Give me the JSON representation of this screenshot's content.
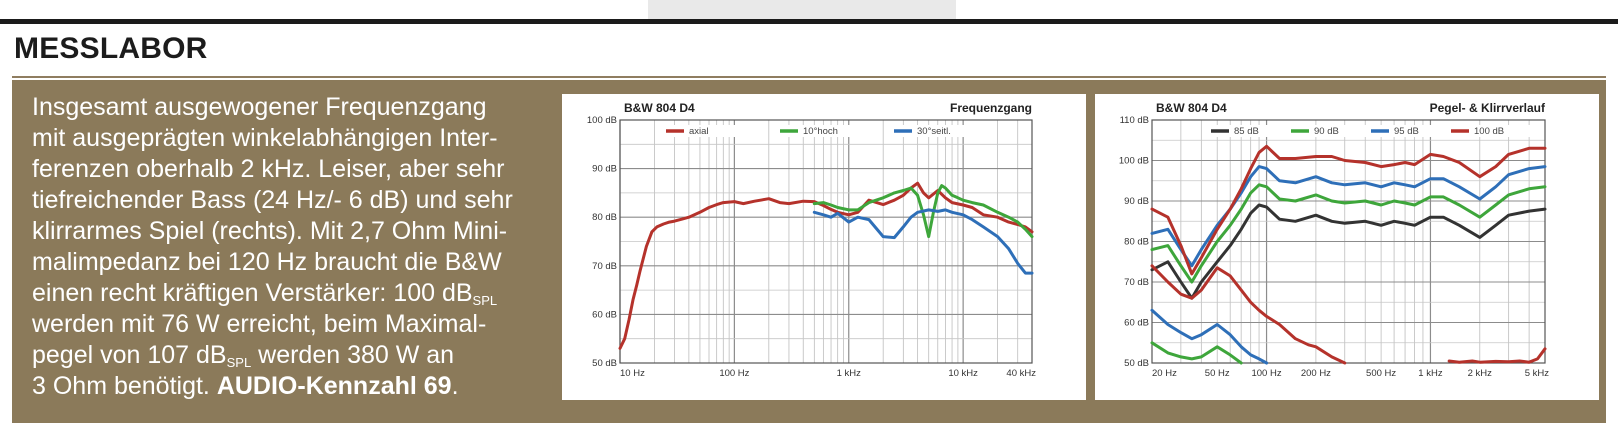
{
  "heading": "MESSLABOR",
  "colors": {
    "panel": "#8b7a5a",
    "axial": "#b5322b",
    "hoch": "#3ea63b",
    "seitl": "#2e6fb8",
    "black": "#333333"
  },
  "text": {
    "l1": "Insgesamt ausgewogener Frequenzgang",
    "l2": "mit ausgeprägten winkelabhängigen Inter-",
    "l3": "ferenzen oberhalb 2 kHz. Leiser, aber sehr",
    "l4": "tiefreichender Bass (24 Hz/- 6 dB) und sehr",
    "l5": "klirrarmes Spiel (rechts). Mit 2,7 Ohm Mini-",
    "l6": "malimpedanz bei 120 Hz braucht die B&W",
    "l7a": "einen recht kräftigen Verstärker: 100 dB",
    "l7sub": "SPL",
    "l8": "werden mit 76 W erreicht, beim Maximal-",
    "l9a": "pegel von 107 dB",
    "l9sub": "SPL",
    "l9b": " werden 380 W an",
    "l10a": "3 Ohm benötigt. ",
    "l10b": "AUDIO-Kennzahl 69",
    "l10c": "."
  },
  "chart_data": [
    {
      "type": "line",
      "title": "Frequenzgang",
      "subtitle": "B&W 804 D4",
      "xscale": "log",
      "xlim": [
        10,
        40000
      ],
      "ylim": [
        50,
        100
      ],
      "x_ticks": [
        {
          "v": 10,
          "label": "10 Hz"
        },
        {
          "v": 100,
          "label": "100 Hz"
        },
        {
          "v": 1000,
          "label": "1 kHz"
        },
        {
          "v": 10000,
          "label": "10 kHz"
        },
        {
          "v": 40000,
          "label": "40 kHz"
        }
      ],
      "y_ticks": [
        {
          "v": 50,
          "label": "50 dB"
        },
        {
          "v": 60,
          "label": "60 dB"
        },
        {
          "v": 70,
          "label": "70 dB"
        },
        {
          "v": 80,
          "label": "80 dB"
        },
        {
          "v": 90,
          "label": "90 dB"
        },
        {
          "v": 100,
          "label": "100 dB"
        }
      ],
      "legend": "top",
      "series": [
        {
          "name": "axial",
          "color": "#b5322b",
          "x": [
            10,
            11,
            12,
            13,
            14,
            15,
            17,
            19,
            21,
            24,
            27,
            30,
            35,
            40,
            50,
            60,
            70,
            80,
            100,
            120,
            150,
            200,
            250,
            300,
            400,
            500,
            600,
            700,
            800,
            1000,
            1200,
            1500,
            2000,
            2500,
            3000,
            3500,
            4000,
            4500,
            5000,
            6000,
            7000,
            8000,
            10000,
            12000,
            15000,
            20000,
            25000,
            30000,
            35000,
            40000
          ],
          "y": [
            53,
            55,
            59,
            63,
            66,
            69,
            74,
            77,
            78,
            78.6,
            79,
            79.2,
            79.6,
            80,
            81,
            82,
            82.6,
            83,
            83.2,
            82.8,
            83.3,
            83.8,
            83,
            82.8,
            83.3,
            83.2,
            82.4,
            81.6,
            81,
            80.5,
            81,
            83.5,
            82.6,
            83.5,
            84.5,
            86,
            87,
            85,
            84,
            85.5,
            84,
            83,
            82.5,
            82,
            80.5,
            80,
            79,
            78.5,
            78,
            77
          ]
        },
        {
          "name": "10°hoch",
          "color": "#3ea63b",
          "x": [
            500,
            600,
            700,
            800,
            1000,
            1200,
            1500,
            2000,
            2500,
            3000,
            3500,
            4000,
            4500,
            5000,
            5500,
            6000,
            6500,
            7000,
            8000,
            9000,
            10000,
            12000,
            15000,
            20000,
            25000,
            30000,
            35000,
            40000
          ],
          "y": [
            82.8,
            83,
            82.5,
            82,
            81.5,
            81.5,
            83,
            84,
            85,
            85.5,
            86,
            84.5,
            80.5,
            76,
            81,
            85,
            86.5,
            86,
            84.5,
            84,
            83.5,
            83,
            82.5,
            81,
            80,
            79,
            77.5,
            76
          ]
        },
        {
          "name": "30°seitl.",
          "color": "#2e6fb8",
          "x": [
            500,
            600,
            700,
            800,
            1000,
            1200,
            1500,
            2000,
            2500,
            3000,
            3500,
            4000,
            5000,
            6000,
            7000,
            8000,
            10000,
            12000,
            15000,
            20000,
            25000,
            30000,
            35000,
            40000
          ],
          "y": [
            81,
            80.5,
            80,
            80.8,
            79,
            80,
            79.5,
            76,
            75.8,
            78,
            80,
            81,
            81.5,
            81.2,
            81.5,
            81,
            80.5,
            79.5,
            78,
            76,
            73.5,
            70.5,
            68.5,
            68.5
          ]
        }
      ]
    },
    {
      "type": "line",
      "title": "Pegel- & Klirrverlauf",
      "subtitle": "B&W 804 D4",
      "xscale": "log",
      "xlim": [
        20,
        5000
      ],
      "ylim": [
        50,
        110
      ],
      "x_ticks": [
        {
          "v": 20,
          "label": "20 Hz"
        },
        {
          "v": 50,
          "label": "50 Hz"
        },
        {
          "v": 100,
          "label": "100 Hz"
        },
        {
          "v": 200,
          "label": "200 Hz"
        },
        {
          "v": 500,
          "label": "500 Hz"
        },
        {
          "v": 1000,
          "label": "1 kHz"
        },
        {
          "v": 2000,
          "label": "2 kHz"
        },
        {
          "v": 5000,
          "label": "5 kHz"
        }
      ],
      "y_ticks": [
        {
          "v": 50,
          "label": "50 dB"
        },
        {
          "v": 60,
          "label": "60 dB"
        },
        {
          "v": 70,
          "label": "70 dB"
        },
        {
          "v": 80,
          "label": "80 dB"
        },
        {
          "v": 90,
          "label": "90 dB"
        },
        {
          "v": 100,
          "label": "100 dB"
        },
        {
          "v": 110,
          "label": "110 dB"
        }
      ],
      "legend": "top",
      "series": [
        {
          "name": "85 dB",
          "color": "#333333",
          "x": [
            20,
            25,
            30,
            35,
            40,
            50,
            60,
            70,
            80,
            90,
            100,
            120,
            150,
            200,
            250,
            300,
            400,
            500,
            600,
            700,
            800,
            1000,
            1200,
            1500,
            2000,
            2500,
            3000,
            4000,
            5000
          ],
          "y": [
            73,
            75,
            70,
            66,
            70,
            75,
            79,
            83,
            87,
            89,
            88.5,
            85.5,
            85,
            86.5,
            85,
            84.5,
            85,
            84,
            85,
            84.5,
            84,
            86,
            86,
            84,
            81,
            84,
            86.5,
            87.5,
            88
          ]
        },
        {
          "name": "90 dB",
          "color": "#3ea63b",
          "x": [
            20,
            25,
            30,
            35,
            40,
            50,
            60,
            70,
            80,
            90,
            100,
            120,
            150,
            200,
            250,
            300,
            400,
            500,
            600,
            700,
            800,
            1000,
            1200,
            1500,
            2000,
            2500,
            3000,
            4000,
            5000
          ],
          "y": [
            78,
            79,
            74,
            70,
            74,
            80,
            84,
            88,
            92,
            94,
            93.5,
            90.5,
            90,
            91.5,
            90,
            89.5,
            90,
            89,
            90,
            89.5,
            89,
            91,
            91,
            89,
            86,
            89,
            91.5,
            93,
            93.5
          ]
        },
        {
          "name": "95 dB",
          "color": "#2e6fb8",
          "x": [
            20,
            25,
            30,
            35,
            40,
            50,
            60,
            70,
            80,
            90,
            100,
            120,
            150,
            200,
            250,
            300,
            400,
            500,
            600,
            700,
            800,
            1000,
            1200,
            1500,
            2000,
            2500,
            3000,
            4000,
            5000
          ],
          "y": [
            82,
            83,
            78,
            74,
            78,
            84,
            88,
            92,
            96,
            98.5,
            98,
            95,
            94.5,
            96,
            94.5,
            94,
            94.5,
            93.5,
            94.5,
            94,
            93.5,
            95.5,
            95.5,
            93.5,
            90.5,
            93.5,
            96.5,
            98,
            98.5
          ]
        },
        {
          "name": "100 dB",
          "color": "#b5322b",
          "x": [
            20,
            25,
            30,
            35,
            40,
            50,
            60,
            70,
            80,
            90,
            100,
            120,
            150,
            200,
            250,
            300,
            400,
            500,
            600,
            700,
            800,
            1000,
            1200,
            1500,
            2000,
            2500,
            3000,
            4000,
            5000
          ],
          "y": [
            88,
            86,
            79,
            72,
            76,
            83,
            88,
            93,
            98,
            102,
            103.5,
            100.5,
            100.5,
            101,
            101,
            100,
            99.5,
            98.5,
            99,
            99.5,
            99,
            101.5,
            101,
            99.5,
            96,
            98.5,
            101.5,
            103,
            103
          ]
        },
        {
          "name": "95 dB distortion",
          "color": "#2e6fb8",
          "x": [
            20,
            25,
            30,
            35,
            40,
            50,
            60,
            70,
            80,
            90,
            100
          ],
          "y": [
            63,
            59.5,
            57.5,
            56,
            57,
            59.5,
            57,
            54,
            52,
            51,
            50
          ]
        },
        {
          "name": "90 dB distortion",
          "color": "#3ea63b",
          "x": [
            20,
            25,
            30,
            35,
            40,
            50,
            60,
            70
          ],
          "y": [
            55,
            52.5,
            51.5,
            51,
            51.5,
            54,
            52,
            50
          ]
        },
        {
          "name": "100 dB distortion",
          "color": "#b5322b",
          "x": [
            20,
            25,
            30,
            35,
            40,
            50,
            60,
            70,
            80,
            90,
            100,
            120,
            150,
            180,
            200,
            250,
            300
          ],
          "y": [
            74,
            70,
            67,
            66,
            68,
            73.5,
            71.5,
            68,
            65,
            63,
            61.5,
            59.5,
            56,
            54.5,
            54,
            51.5,
            50
          ]
        },
        {
          "name": "100 dB distortion high",
          "color": "#b5322b",
          "x": [
            1300,
            1500,
            1800,
            2000,
            2500,
            3000,
            3500,
            4000,
            4500,
            5000
          ],
          "y": [
            50.5,
            50.2,
            50.5,
            50.2,
            50.4,
            50.3,
            50.5,
            50.2,
            51,
            53.5
          ]
        }
      ]
    }
  ]
}
